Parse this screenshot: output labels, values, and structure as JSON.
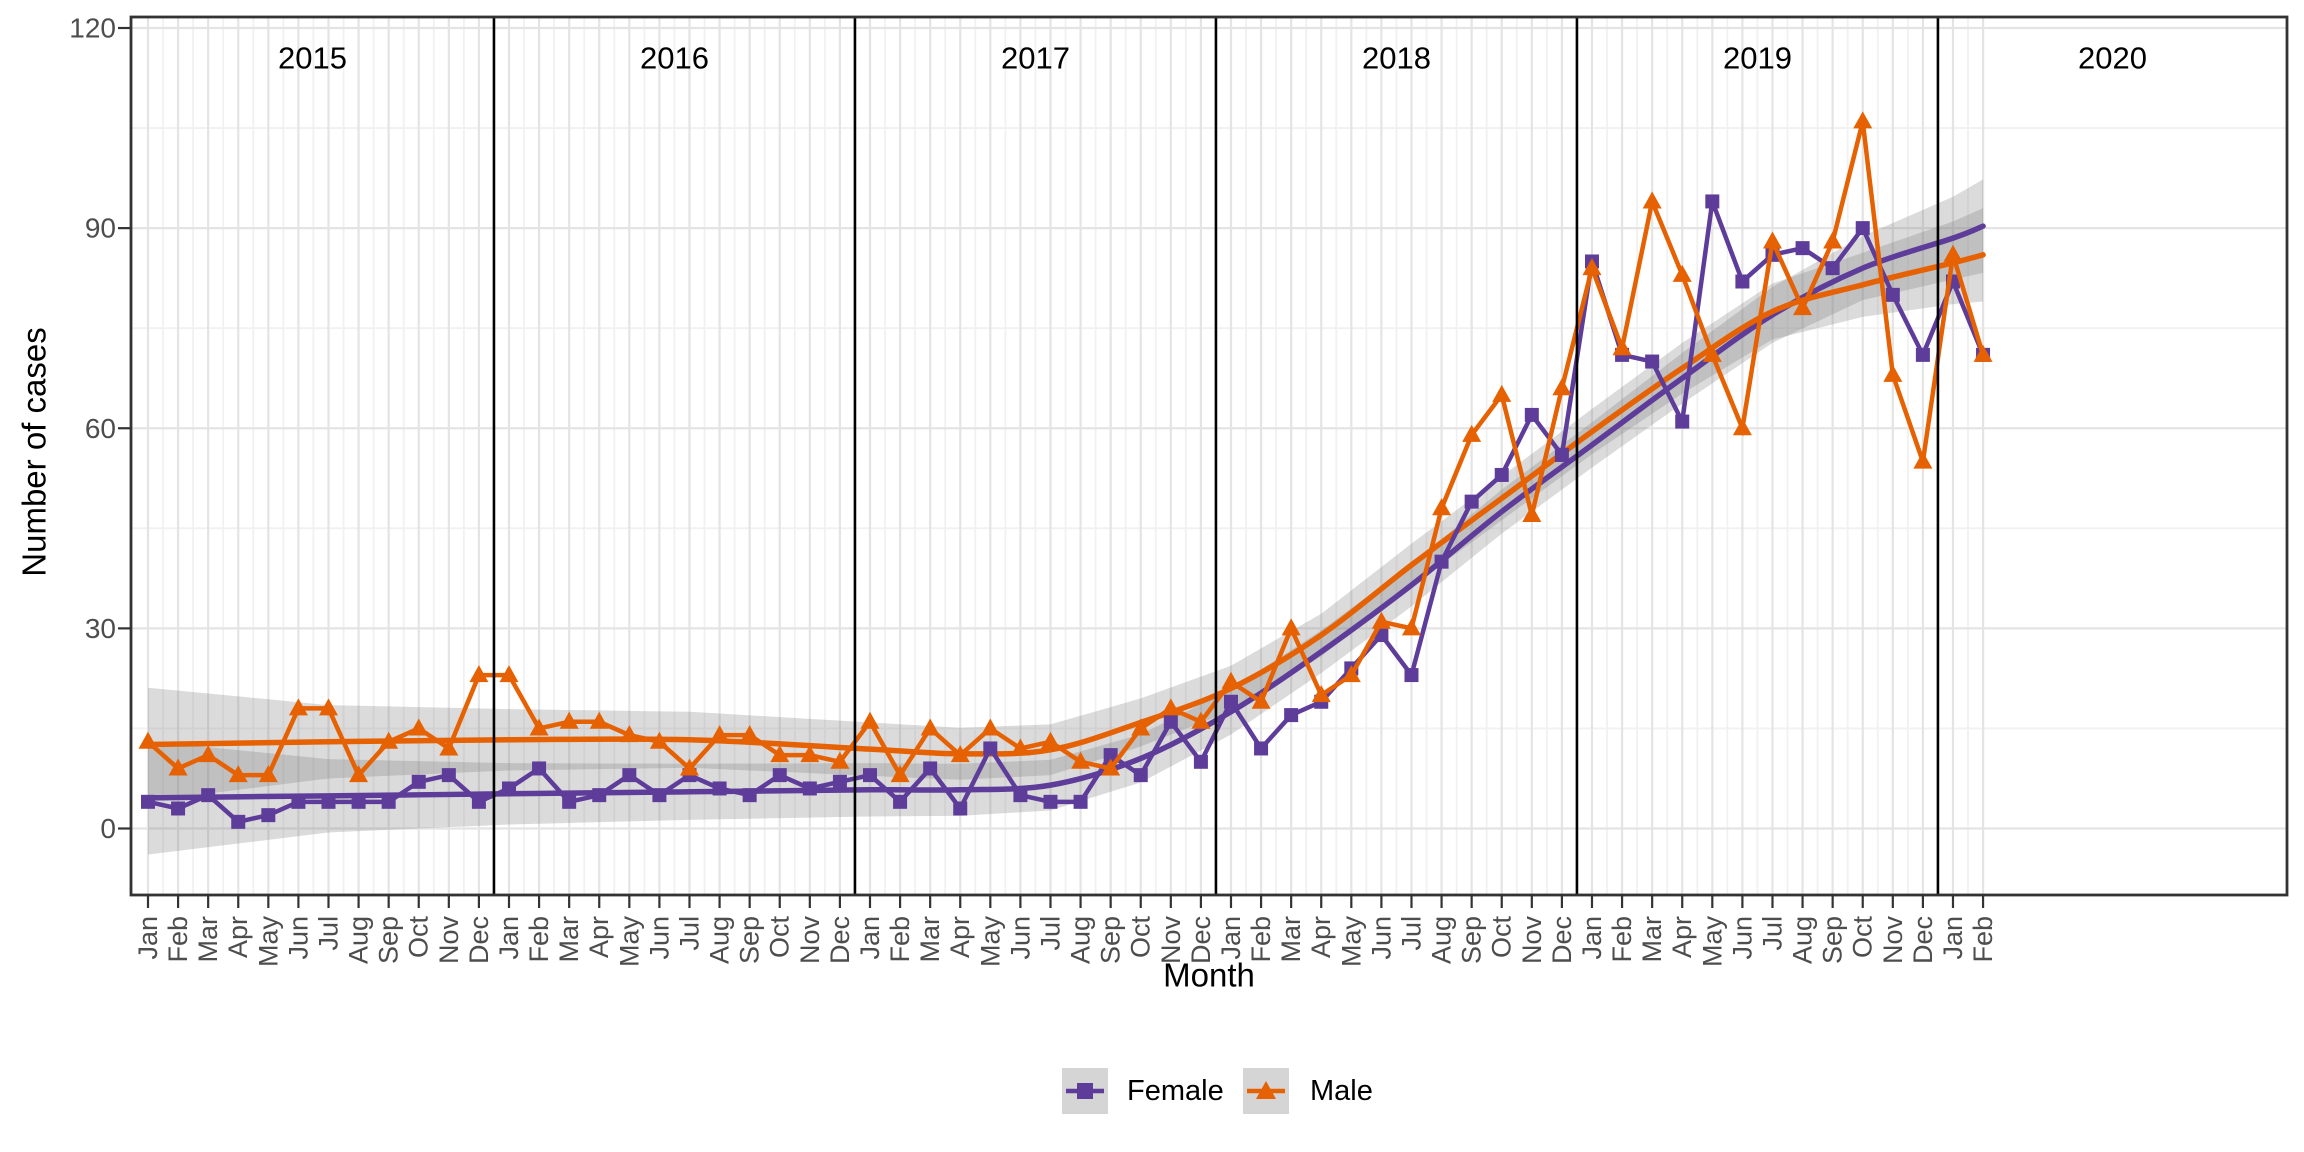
{
  "chart_data": {
    "type": "line",
    "xlabel": "Month",
    "ylabel": "Number of cases",
    "y_tick_labels": [
      "0",
      "30",
      "60",
      "90",
      "120"
    ],
    "y_tick_values": [
      0,
      30,
      60,
      90,
      120
    ],
    "y_minor_values": [
      15,
      45,
      75,
      105
    ],
    "ylim": [
      -10,
      122
    ],
    "grid": "on",
    "year_labels": [
      "2015",
      "2016",
      "2017",
      "2018",
      "2019",
      "2020"
    ],
    "x_tick_labels": [
      "Jan",
      "Feb",
      "Mar",
      "Apr",
      "May",
      "Jun",
      "Jul",
      "Aug",
      "Sep",
      "Oct",
      "Nov",
      "Dec",
      "Jan",
      "Feb",
      "Mar",
      "Apr",
      "May",
      "Jun",
      "Jul",
      "Aug",
      "Sep",
      "Oct",
      "Nov",
      "Dec",
      "Jan",
      "Feb",
      "Mar",
      "Apr",
      "May",
      "Jun",
      "Jul",
      "Aug",
      "Sep",
      "Oct",
      "Nov",
      "Dec",
      "Jan",
      "Feb",
      "Mar",
      "Apr",
      "May",
      "Jun",
      "Jul",
      "Aug",
      "Sep",
      "Oct",
      "Nov",
      "Dec",
      "Jan",
      "Feb",
      "Mar",
      "Apr",
      "May",
      "Jun",
      "Jul",
      "Aug",
      "Sep",
      "Oct",
      "Nov",
      "Dec",
      "Jan",
      "Feb"
    ],
    "series": [
      {
        "name": "Female",
        "color": "#5e3c99",
        "marker": "square",
        "values": [
          4,
          3,
          5,
          1,
          2,
          4,
          4,
          4,
          4,
          7,
          8,
          4,
          6,
          9,
          4,
          5,
          8,
          5,
          8,
          6,
          5,
          8,
          6,
          7,
          8,
          4,
          9,
          3,
          12,
          5,
          4,
          4,
          11,
          8,
          16,
          10,
          19,
          12,
          17,
          19,
          24,
          29,
          23,
          40,
          49,
          53,
          62,
          56,
          85,
          71,
          70,
          61,
          94,
          82,
          86,
          87,
          84,
          90,
          80,
          71,
          82,
          71
        ]
      },
      {
        "name": "Male",
        "color": "#e66101",
        "marker": "triangle",
        "values": [
          13,
          9,
          11,
          8,
          8,
          18,
          18,
          8,
          13,
          15,
          12,
          23,
          23,
          15,
          16,
          16,
          14,
          13,
          9,
          14,
          14,
          11,
          11,
          10,
          16,
          8,
          15,
          11,
          15,
          12,
          13,
          10,
          9,
          15,
          18,
          16,
          22,
          19,
          30,
          20,
          23,
          31,
          30,
          48,
          59,
          65,
          47,
          66,
          84,
          72,
          94,
          83,
          71,
          60,
          88,
          78,
          88,
          106,
          68,
          55,
          86,
          71
        ]
      }
    ],
    "smooth_trend": {
      "note": "loess smoothed conditional means with confidence ribbon, values by month index",
      "indices": [
        0,
        6,
        12,
        18,
        24,
        27,
        30,
        33,
        36,
        39,
        42,
        45,
        48,
        51,
        54,
        57,
        60,
        61
      ],
      "female": [
        4.6,
        4.9,
        5.2,
        5.5,
        5.8,
        5.8,
        6.5,
        10.5,
        17.5,
        26.5,
        36.5,
        47.5,
        57.5,
        67.5,
        77,
        84,
        88.5,
        90.3
      ],
      "male": [
        12.6,
        13.0,
        13.3,
        13.3,
        11.9,
        11.2,
        11.8,
        15.9,
        21,
        29,
        39.5,
        49.5,
        59.5,
        69,
        77.5,
        81.5,
        84.8,
        86
      ],
      "ribbon_half_width": [
        8.5,
        5.5,
        4.6,
        4.2,
        4.0,
        3.9,
        3.8,
        3.6,
        3.4,
        3.2,
        3.2,
        3.3,
        3.4,
        3.8,
        4.2,
        4.8,
        6.2,
        7.0
      ],
      "ribbon_color": "#7a7a7a",
      "ribbon_opacity": 0.27
    },
    "legend": {
      "position": "bottom",
      "key_fill": "#d5d5d5",
      "items": [
        "Female",
        "Male"
      ]
    },
    "style": {
      "grid_major_color": "#e4e4e4",
      "grid_minor_color": "#f1f1f1",
      "panel_border_color": "#333333",
      "year_separator_color": "#000000",
      "tick_color": "#333333",
      "tick_label_color": "#4d4d4d"
    }
  }
}
